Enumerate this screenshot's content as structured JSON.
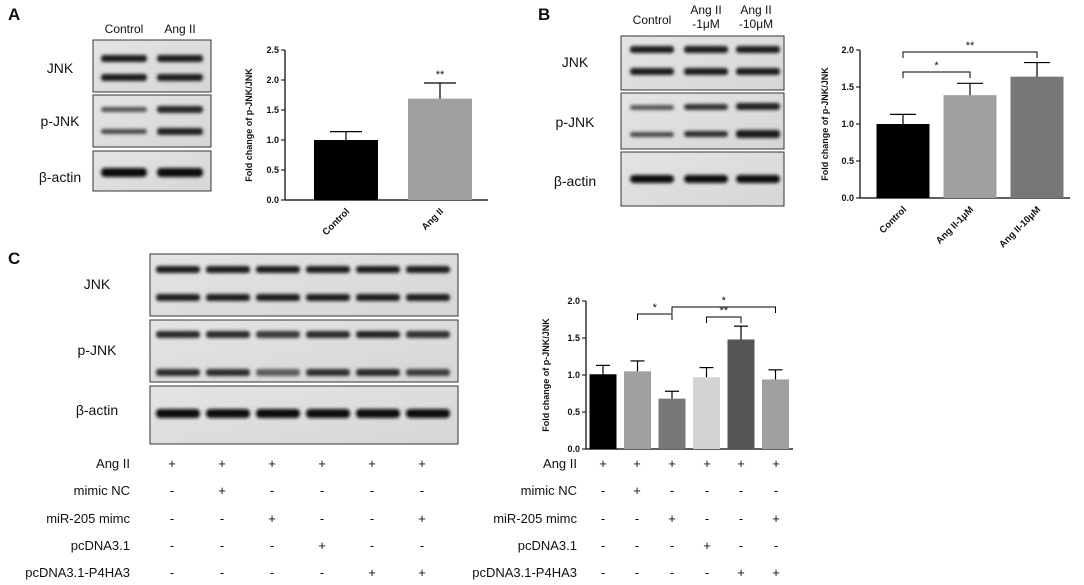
{
  "panels": {
    "A": {
      "letter": "A",
      "blot": {
        "lanes": [
          "Control",
          "Ang II"
        ],
        "rows": [
          "JNK",
          "p-JNK",
          "β-actin"
        ]
      },
      "chart_data": {
        "type": "bar",
        "ylabel": "Fold change of p-JNK/JNK",
        "xlabel": "",
        "ylim": [
          0,
          2.5
        ],
        "yticks": [
          "0.0",
          "0.5",
          "1.0",
          "1.5",
          "2.0",
          "2.5"
        ],
        "categories": [
          "Control",
          "Ang II"
        ],
        "values": [
          1.0,
          1.69
        ],
        "errors": [
          0.14,
          0.26
        ],
        "colors": [
          "#000000",
          "#a0a0a0"
        ],
        "annotations": [
          {
            "bar": 1,
            "text": "**"
          }
        ]
      }
    },
    "B": {
      "letter": "B",
      "blot": {
        "lanes": [
          [
            "Control"
          ],
          [
            "Ang II",
            "-1μM"
          ],
          [
            "Ang II",
            "-10μM"
          ]
        ],
        "rows": [
          "JNK",
          "p-JNK",
          "β-actin"
        ]
      },
      "chart_data": {
        "type": "bar",
        "ylabel": "Fold change of p-JNK/JNK",
        "xlabel": "",
        "ylim": [
          0,
          2.0
        ],
        "yticks": [
          "0.0",
          "0.5",
          "1.0",
          "1.5",
          "2.0"
        ],
        "categories": [
          "Control",
          "Ang II-1μM",
          "Ang II-10μM"
        ],
        "values": [
          1.0,
          1.39,
          1.64
        ],
        "errors": [
          0.13,
          0.16,
          0.19
        ],
        "colors": [
          "#000000",
          "#a0a0a0",
          "#777777"
        ],
        "brackets": [
          {
            "from": 0,
            "to": 1,
            "text": "*"
          },
          {
            "from": 0,
            "to": 2,
            "text": "**"
          }
        ]
      }
    },
    "C": {
      "letter": "C",
      "blot": {
        "rows": [
          "JNK",
          "p-JNK",
          "β-actin"
        ],
        "lane_count": 6
      },
      "conditions": [
        {
          "label": "Ang II",
          "marks": [
            "+",
            "+",
            "+",
            "+",
            "+",
            "+"
          ]
        },
        {
          "label": "mimic NC",
          "marks": [
            "-",
            "+",
            "-",
            "-",
            "-",
            "-"
          ]
        },
        {
          "label": "miR-205 mimc",
          "marks": [
            "-",
            "-",
            "+",
            "-",
            "-",
            "+"
          ]
        },
        {
          "label": "pcDNA3.1",
          "marks": [
            "-",
            "-",
            "-",
            "+",
            "-",
            "-"
          ]
        },
        {
          "label": "pcDNA3.1-P4HA3",
          "marks": [
            "-",
            "-",
            "-",
            "-",
            "+",
            "+"
          ]
        }
      ],
      "chart_data": {
        "type": "bar",
        "ylabel": "Fold change of p-JNK/JNK",
        "xlabel": "",
        "ylim": [
          0,
          2.0
        ],
        "yticks": [
          "0.0",
          "0.5",
          "1.0",
          "1.5",
          "2.0"
        ],
        "values": [
          1.01,
          1.05,
          0.68,
          0.97,
          1.48,
          0.94
        ],
        "errors": [
          0.12,
          0.14,
          0.1,
          0.13,
          0.18,
          0.13
        ],
        "colors": [
          "#000000",
          "#a0a0a0",
          "#777777",
          "#d4d4d4",
          "#555555",
          "#a0a0a0"
        ],
        "brackets": [
          {
            "from": 1,
            "to": 2,
            "text": "*"
          },
          {
            "from": 2,
            "to": 5,
            "text": "*"
          },
          {
            "from": 3,
            "to": 4,
            "text": "**"
          }
        ]
      }
    }
  }
}
